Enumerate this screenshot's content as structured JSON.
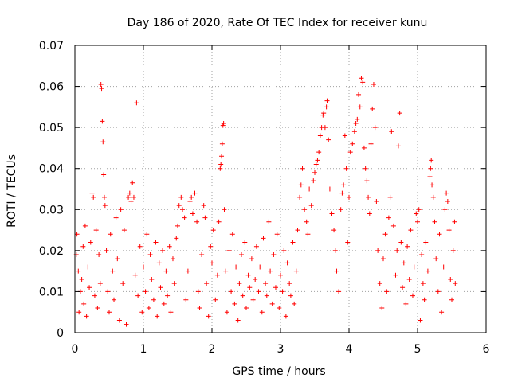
{
  "chart_data": {
    "type": "scatter",
    "title": "Day 186 of 2020, Rate Of TEC Index for receiver kunu",
    "xlabel": "GPS time / hours",
    "ylabel": "ROTI / TECUs",
    "xlim": [
      0,
      6
    ],
    "ylim": [
      0,
      0.07
    ],
    "x_ticks": [
      "0",
      "1",
      "2",
      "3",
      "4",
      "5",
      "6"
    ],
    "y_ticks": [
      "0",
      "0.01",
      "0.02",
      "0.03",
      "0.04",
      "0.05",
      "0.06",
      "0.07"
    ],
    "grid": true,
    "marker": "+",
    "color": "#ff0000",
    "series": [
      {
        "name": "ROTI",
        "points": [
          [
            0.02,
            0.019
          ],
          [
            0.03,
            0.024
          ],
          [
            0.05,
            0.015
          ],
          [
            0.06,
            0.005
          ],
          [
            0.08,
            0.01
          ],
          [
            0.1,
            0.013
          ],
          [
            0.12,
            0.021
          ],
          [
            0.13,
            0.007
          ],
          [
            0.15,
            0.026
          ],
          [
            0.17,
            0.004
          ],
          [
            0.19,
            0.016
          ],
          [
            0.21,
            0.011
          ],
          [
            0.23,
            0.022
          ],
          [
            0.25,
            0.034
          ],
          [
            0.27,
            0.033
          ],
          [
            0.29,
            0.009
          ],
          [
            0.31,
            0.025
          ],
          [
            0.33,
            0.006
          ],
          [
            0.35,
            0.019
          ],
          [
            0.37,
            0.012
          ],
          [
            0.38,
            0.0605
          ],
          [
            0.39,
            0.0595
          ],
          [
            0.4,
            0.0515
          ],
          [
            0.41,
            0.0465
          ],
          [
            0.42,
            0.0385
          ],
          [
            0.43,
            0.033
          ],
          [
            0.44,
            0.031
          ],
          [
            0.46,
            0.02
          ],
          [
            0.48,
            0.01
          ],
          [
            0.5,
            0.005
          ],
          [
            0.52,
            0.024
          ],
          [
            0.55,
            0.015
          ],
          [
            0.57,
            0.008
          ],
          [
            0.6,
            0.028
          ],
          [
            0.62,
            0.018
          ],
          [
            0.65,
            0.003
          ],
          [
            0.67,
            0.03
          ],
          [
            0.7,
            0.012
          ],
          [
            0.72,
            0.025
          ],
          [
            0.75,
            0.002
          ],
          [
            0.78,
            0.033
          ],
          [
            0.8,
            0.034
          ],
          [
            0.82,
            0.032
          ],
          [
            0.84,
            0.0365
          ],
          [
            0.86,
            0.033
          ],
          [
            0.88,
            0.014
          ],
          [
            0.9,
            0.056
          ],
          [
            0.92,
            0.009
          ],
          [
            0.95,
            0.021
          ],
          [
            0.98,
            0.005
          ],
          [
            1.0,
            0.016
          ],
          [
            1.03,
            0.01
          ],
          [
            1.05,
            0.024
          ],
          [
            1.08,
            0.006
          ],
          [
            1.1,
            0.019
          ],
          [
            1.12,
            0.013
          ],
          [
            1.15,
            0.008
          ],
          [
            1.18,
            0.022
          ],
          [
            1.2,
            0.004
          ],
          [
            1.23,
            0.017
          ],
          [
            1.25,
            0.011
          ],
          [
            1.28,
            0.02
          ],
          [
            1.3,
            0.007
          ],
          [
            1.33,
            0.015
          ],
          [
            1.35,
            0.009
          ],
          [
            1.38,
            0.021
          ],
          [
            1.4,
            0.005
          ],
          [
            1.43,
            0.018
          ],
          [
            1.45,
            0.012
          ],
          [
            1.48,
            0.023
          ],
          [
            1.5,
            0.026
          ],
          [
            1.52,
            0.031
          ],
          [
            1.55,
            0.033
          ],
          [
            1.57,
            0.03
          ],
          [
            1.6,
            0.028
          ],
          [
            1.62,
            0.008
          ],
          [
            1.65,
            0.015
          ],
          [
            1.68,
            0.032
          ],
          [
            1.7,
            0.033
          ],
          [
            1.72,
            0.029
          ],
          [
            1.75,
            0.034
          ],
          [
            1.78,
            0.027
          ],
          [
            1.8,
            0.01
          ],
          [
            1.82,
            0.006
          ],
          [
            1.85,
            0.019
          ],
          [
            1.88,
            0.031
          ],
          [
            1.9,
            0.028
          ],
          [
            1.92,
            0.012
          ],
          [
            1.95,
            0.004
          ],
          [
            1.98,
            0.021
          ],
          [
            2.0,
            0.017
          ],
          [
            2.02,
            0.025
          ],
          [
            2.05,
            0.008
          ],
          [
            2.08,
            0.014
          ],
          [
            2.1,
            0.027
          ],
          [
            2.12,
            0.04
          ],
          [
            2.13,
            0.041
          ],
          [
            2.14,
            0.043
          ],
          [
            2.15,
            0.046
          ],
          [
            2.16,
            0.0505
          ],
          [
            2.17,
            0.051
          ],
          [
            2.18,
            0.03
          ],
          [
            2.2,
            0.015
          ],
          [
            2.22,
            0.005
          ],
          [
            2.25,
            0.02
          ],
          [
            2.28,
            0.01
          ],
          [
            2.3,
            0.024
          ],
          [
            2.33,
            0.007
          ],
          [
            2.35,
            0.016
          ],
          [
            2.38,
            0.003
          ],
          [
            2.4,
            0.012
          ],
          [
            2.43,
            0.019
          ],
          [
            2.45,
            0.009
          ],
          [
            2.48,
            0.022
          ],
          [
            2.5,
            0.006
          ],
          [
            2.53,
            0.014
          ],
          [
            2.55,
            0.011
          ],
          [
            2.58,
            0.018
          ],
          [
            2.6,
            0.008
          ],
          [
            2.63,
            0.013
          ],
          [
            2.65,
            0.021
          ],
          [
            2.68,
            0.01
          ],
          [
            2.7,
            0.016
          ],
          [
            2.73,
            0.005
          ],
          [
            2.75,
            0.023
          ],
          [
            2.78,
            0.012
          ],
          [
            2.8,
            0.009
          ],
          [
            2.83,
            0.027
          ],
          [
            2.85,
            0.015
          ],
          [
            2.88,
            0.007
          ],
          [
            2.9,
            0.019
          ],
          [
            2.93,
            0.011
          ],
          [
            2.95,
            0.024
          ],
          [
            2.98,
            0.006
          ],
          [
            3.0,
            0.014
          ],
          [
            3.03,
            0.01
          ],
          [
            3.05,
            0.02
          ],
          [
            3.08,
            0.004
          ],
          [
            3.1,
            0.017
          ],
          [
            3.13,
            0.012
          ],
          [
            3.15,
            0.009
          ],
          [
            3.18,
            0.022
          ],
          [
            3.2,
            0.007
          ],
          [
            3.23,
            0.015
          ],
          [
            3.25,
            0.025
          ],
          [
            3.28,
            0.033
          ],
          [
            3.3,
            0.036
          ],
          [
            3.32,
            0.04
          ],
          [
            3.35,
            0.03
          ],
          [
            3.38,
            0.027
          ],
          [
            3.4,
            0.024
          ],
          [
            3.42,
            0.035
          ],
          [
            3.45,
            0.031
          ],
          [
            3.48,
            0.037
          ],
          [
            3.5,
            0.039
          ],
          [
            3.52,
            0.041
          ],
          [
            3.54,
            0.042
          ],
          [
            3.56,
            0.044
          ],
          [
            3.58,
            0.048
          ],
          [
            3.6,
            0.05
          ],
          [
            3.62,
            0.053
          ],
          [
            3.63,
            0.0535
          ],
          [
            3.65,
            0.05
          ],
          [
            3.67,
            0.055
          ],
          [
            3.68,
            0.0565
          ],
          [
            3.7,
            0.047
          ],
          [
            3.72,
            0.035
          ],
          [
            3.75,
            0.029
          ],
          [
            3.78,
            0.025
          ],
          [
            3.8,
            0.02
          ],
          [
            3.82,
            0.015
          ],
          [
            3.85,
            0.01
          ],
          [
            3.88,
            0.03
          ],
          [
            3.9,
            0.034
          ],
          [
            3.92,
            0.036
          ],
          [
            3.94,
            0.048
          ],
          [
            3.96,
            0.04
          ],
          [
            3.98,
            0.022
          ],
          [
            4.0,
            0.033
          ],
          [
            4.02,
            0.044
          ],
          [
            4.05,
            0.046
          ],
          [
            4.08,
            0.049
          ],
          [
            4.1,
            0.051
          ],
          [
            4.12,
            0.052
          ],
          [
            4.14,
            0.058
          ],
          [
            4.16,
            0.055
          ],
          [
            4.18,
            0.062
          ],
          [
            4.2,
            0.061
          ],
          [
            4.22,
            0.045
          ],
          [
            4.24,
            0.04
          ],
          [
            4.26,
            0.037
          ],
          [
            4.28,
            0.033
          ],
          [
            4.3,
            0.029
          ],
          [
            4.32,
            0.046
          ],
          [
            4.34,
            0.0545
          ],
          [
            4.36,
            0.0605
          ],
          [
            4.38,
            0.05
          ],
          [
            4.4,
            0.032
          ],
          [
            4.42,
            0.02
          ],
          [
            4.45,
            0.012
          ],
          [
            4.48,
            0.006
          ],
          [
            4.5,
            0.018
          ],
          [
            4.53,
            0.024
          ],
          [
            4.55,
            0.01
          ],
          [
            4.58,
            0.028
          ],
          [
            4.6,
            0.033
          ],
          [
            4.62,
            0.049
          ],
          [
            4.65,
            0.026
          ],
          [
            4.68,
            0.014
          ],
          [
            4.7,
            0.02
          ],
          [
            4.72,
            0.0455
          ],
          [
            4.74,
            0.0535
          ],
          [
            4.76,
            0.022
          ],
          [
            4.78,
            0.011
          ],
          [
            4.8,
            0.017
          ],
          [
            4.83,
            0.007
          ],
          [
            4.85,
            0.021
          ],
          [
            4.88,
            0.013
          ],
          [
            4.9,
            0.025
          ],
          [
            4.93,
            0.009
          ],
          [
            4.95,
            0.016
          ],
          [
            4.98,
            0.029
          ],
          [
            5.0,
            0.027
          ],
          [
            5.02,
            0.03
          ],
          [
            5.04,
            0.003
          ],
          [
            5.06,
            0.019
          ],
          [
            5.08,
            0.012
          ],
          [
            5.1,
            0.008
          ],
          [
            5.12,
            0.022
          ],
          [
            5.15,
            0.015
          ],
          [
            5.18,
            0.038
          ],
          [
            5.19,
            0.04
          ],
          [
            5.2,
            0.042
          ],
          [
            5.21,
            0.036
          ],
          [
            5.23,
            0.033
          ],
          [
            5.25,
            0.027
          ],
          [
            5.27,
            0.018
          ],
          [
            5.3,
            0.01
          ],
          [
            5.32,
            0.024
          ],
          [
            5.35,
            0.005
          ],
          [
            5.38,
            0.016
          ],
          [
            5.4,
            0.03
          ],
          [
            5.42,
            0.034
          ],
          [
            5.44,
            0.032
          ],
          [
            5.46,
            0.025
          ],
          [
            5.48,
            0.013
          ],
          [
            5.5,
            0.008
          ],
          [
            5.52,
            0.02
          ],
          [
            5.54,
            0.027
          ],
          [
            5.55,
            0.012
          ]
        ]
      }
    ]
  }
}
